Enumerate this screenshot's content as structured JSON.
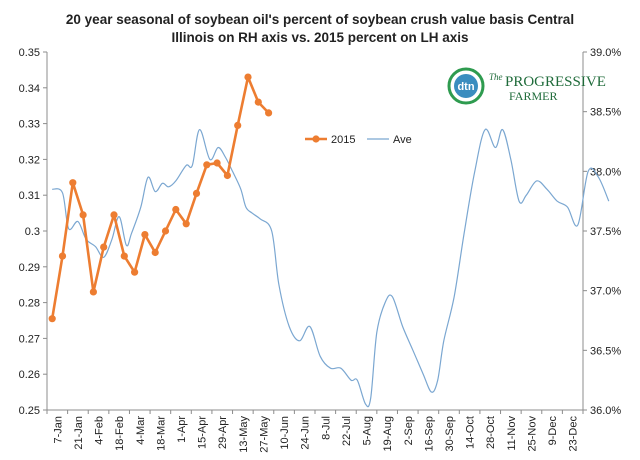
{
  "chart_data": {
    "type": "line",
    "title": [
      "20 year seasonal of soybean oil's percent of soybean crush value basis Central",
      "Illinois on RH axis vs. 2015 percent on LH axis"
    ],
    "left_axis": {
      "min": 0.25,
      "max": 0.35,
      "ticks": [
        "0.25",
        "0.26",
        "0.27",
        "0.28",
        "0.29",
        "0.3",
        "0.31",
        "0.32",
        "0.33",
        "0.34",
        "0.35"
      ]
    },
    "right_axis": {
      "min": 36.0,
      "max": 39.0,
      "ticks": [
        "36.0%",
        "36.5%",
        "37.0%",
        "37.5%",
        "38.0%",
        "38.5%",
        "39.0%"
      ]
    },
    "x_labels": [
      "7-Jan",
      "21-Jan",
      "4-Feb",
      "18-Feb",
      "4-Mar",
      "18-Mar",
      "1-Apr",
      "15-Apr",
      "29-Apr",
      "13-May",
      "27-May",
      "10-Jun",
      "24-Jun",
      "8-Jul",
      "22-Jul",
      "5-Aug",
      "19-Aug",
      "2-Sep",
      "16-Sep",
      "30-Sep",
      "14-Oct",
      "28-Oct",
      "11-Nov",
      "25-Nov",
      "9-Dec",
      "23-Dec"
    ],
    "grid": false,
    "legend_position": "top-center",
    "series": [
      {
        "name": "2015",
        "axis": "left",
        "color": "#ED7D31",
        "marker": "circle",
        "points": [
          [
            0,
            0.2755
          ],
          [
            1,
            0.293
          ],
          [
            2,
            0.3135
          ],
          [
            3,
            0.3045
          ],
          [
            4,
            0.283
          ],
          [
            5,
            0.2955
          ],
          [
            6,
            0.3045
          ],
          [
            7,
            0.293
          ],
          [
            8,
            0.2885
          ],
          [
            9,
            0.299
          ],
          [
            10,
            0.294
          ],
          [
            11,
            0.3
          ],
          [
            12,
            0.306
          ],
          [
            13,
            0.302
          ],
          [
            14,
            0.3105
          ],
          [
            15,
            0.3185
          ],
          [
            16,
            0.319
          ],
          [
            17,
            0.3155
          ],
          [
            18,
            0.3295
          ],
          [
            19,
            0.343
          ],
          [
            20,
            0.336
          ],
          [
            21,
            0.333
          ]
        ]
      },
      {
        "name": "Ave",
        "axis": "right",
        "color": "#7BA7D1",
        "marker": "none",
        "points": [
          [
            0,
            37.85
          ],
          [
            1,
            37.82
          ],
          [
            1.6,
            37.52
          ],
          [
            2.5,
            37.58
          ],
          [
            3.3,
            37.43
          ],
          [
            4.2,
            37.37
          ],
          [
            5,
            37.28
          ],
          [
            5.8,
            37.43
          ],
          [
            6.5,
            37.62
          ],
          [
            7.2,
            37.38
          ],
          [
            7.7,
            37.48
          ],
          [
            8.6,
            37.7
          ],
          [
            9.3,
            37.95
          ],
          [
            10,
            37.83
          ],
          [
            10.7,
            37.9
          ],
          [
            11.3,
            37.87
          ],
          [
            12.0,
            37.92
          ],
          [
            13.0,
            38.05
          ],
          [
            13.6,
            38.05
          ],
          [
            14.3,
            38.35
          ],
          [
            15.3,
            38.1
          ],
          [
            16.1,
            38.2
          ],
          [
            16.8,
            38.12
          ],
          [
            17.5,
            38.0
          ],
          [
            18.3,
            37.85
          ],
          [
            18.8,
            37.7
          ],
          [
            19.4,
            37.65
          ],
          [
            20.2,
            37.6
          ],
          [
            21.3,
            37.5
          ],
          [
            22.0,
            37.05
          ],
          [
            23.0,
            36.7
          ],
          [
            24.0,
            36.58
          ],
          [
            25.0,
            36.7
          ],
          [
            26.0,
            36.45
          ],
          [
            27.0,
            36.35
          ],
          [
            28.0,
            36.35
          ],
          [
            29.0,
            36.25
          ],
          [
            29.6,
            36.25
          ],
          [
            30.4,
            36.05
          ],
          [
            30.9,
            36.1
          ],
          [
            31.5,
            36.65
          ],
          [
            32.3,
            36.9
          ],
          [
            33.0,
            36.95
          ],
          [
            34.0,
            36.7
          ],
          [
            35.0,
            36.5
          ],
          [
            36.0,
            36.3
          ],
          [
            36.8,
            36.15
          ],
          [
            37.4,
            36.25
          ],
          [
            38.0,
            36.58
          ],
          [
            39.0,
            36.95
          ],
          [
            40.0,
            37.5
          ],
          [
            41.0,
            38.0
          ],
          [
            42.0,
            38.35
          ],
          [
            43.0,
            38.2
          ],
          [
            43.7,
            38.35
          ],
          [
            44.5,
            38.1
          ],
          [
            45.3,
            37.75
          ],
          [
            46.0,
            37.8
          ],
          [
            47.0,
            37.92
          ],
          [
            48.0,
            37.85
          ],
          [
            49.0,
            37.75
          ],
          [
            50.0,
            37.7
          ],
          [
            51.0,
            37.55
          ],
          [
            52.0,
            38.0
          ],
          [
            53.0,
            37.95
          ],
          [
            54.0,
            37.75
          ]
        ]
      }
    ]
  },
  "logo": {
    "badge_text": "dtn",
    "line1": "The",
    "line2": "PROGRESSIVE",
    "line3": "FARMER",
    "badge_color": "#3a8dbf",
    "ring_color": "#2e9b4f",
    "text_color": "#1f6b3a"
  }
}
